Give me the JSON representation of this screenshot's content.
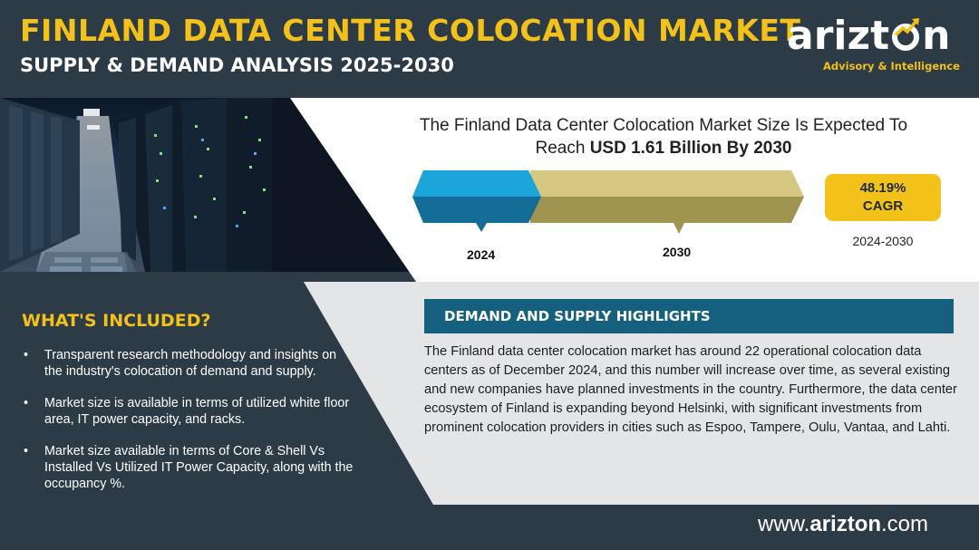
{
  "header": {
    "title": "FINLAND DATA CENTER COLOCATION MARKET",
    "subtitle": "SUPPLY & DEMAND ANALYSIS 2025-2030"
  },
  "logo": {
    "word_left": "arizt",
    "word_right": "n",
    "tagline": "Advisory & Intelligence"
  },
  "market": {
    "headline_line1": "The Finland Data Center Colocation Market Size Is Expected To",
    "headline_prefix": "Reach ",
    "headline_value": "USD 1.61 Billion By 2030",
    "year_start": "2024",
    "year_end": "2030",
    "cagr_value": "48.19%",
    "cagr_label": "CAGR",
    "cagr_period": "2024-2030"
  },
  "whats_included": {
    "title": "WHAT'S INCLUDED?",
    "items": [
      "Transparent research methodology and insights on the industry's colocation of demand and supply.",
      "Market size is available in terms of utilized white floor area, IT power capacity, and racks.",
      "Market size available in terms of Core & Shell Vs Installed Vs Utilized IT Power Capacity, along with the occupancy %."
    ]
  },
  "highlights": {
    "title": "DEMAND AND SUPPLY HIGHLIGHTS",
    "body": "The Finland data center colocation market has around 22 operational colocation data centers as of December 2024, and this number will increase over time, as several existing and new companies have planned investments in the country. Furthermore, the data center ecosystem of Finland is expanding beyond Helsinki, with significant investments from prominent colocation providers in cities such as Espoo, Tampere, Oulu, Vantaa, and Lahti."
  },
  "footer": {
    "website_prefix": "www.",
    "website_name": "arizton",
    "website_suffix": ".com"
  },
  "colors": {
    "dark": "#2c3b45",
    "accent_yellow": "#f2c21a",
    "accent_blue": "#15607e",
    "arrow_2024": "#1da5d9",
    "arrow_2030": "#d6c882"
  }
}
